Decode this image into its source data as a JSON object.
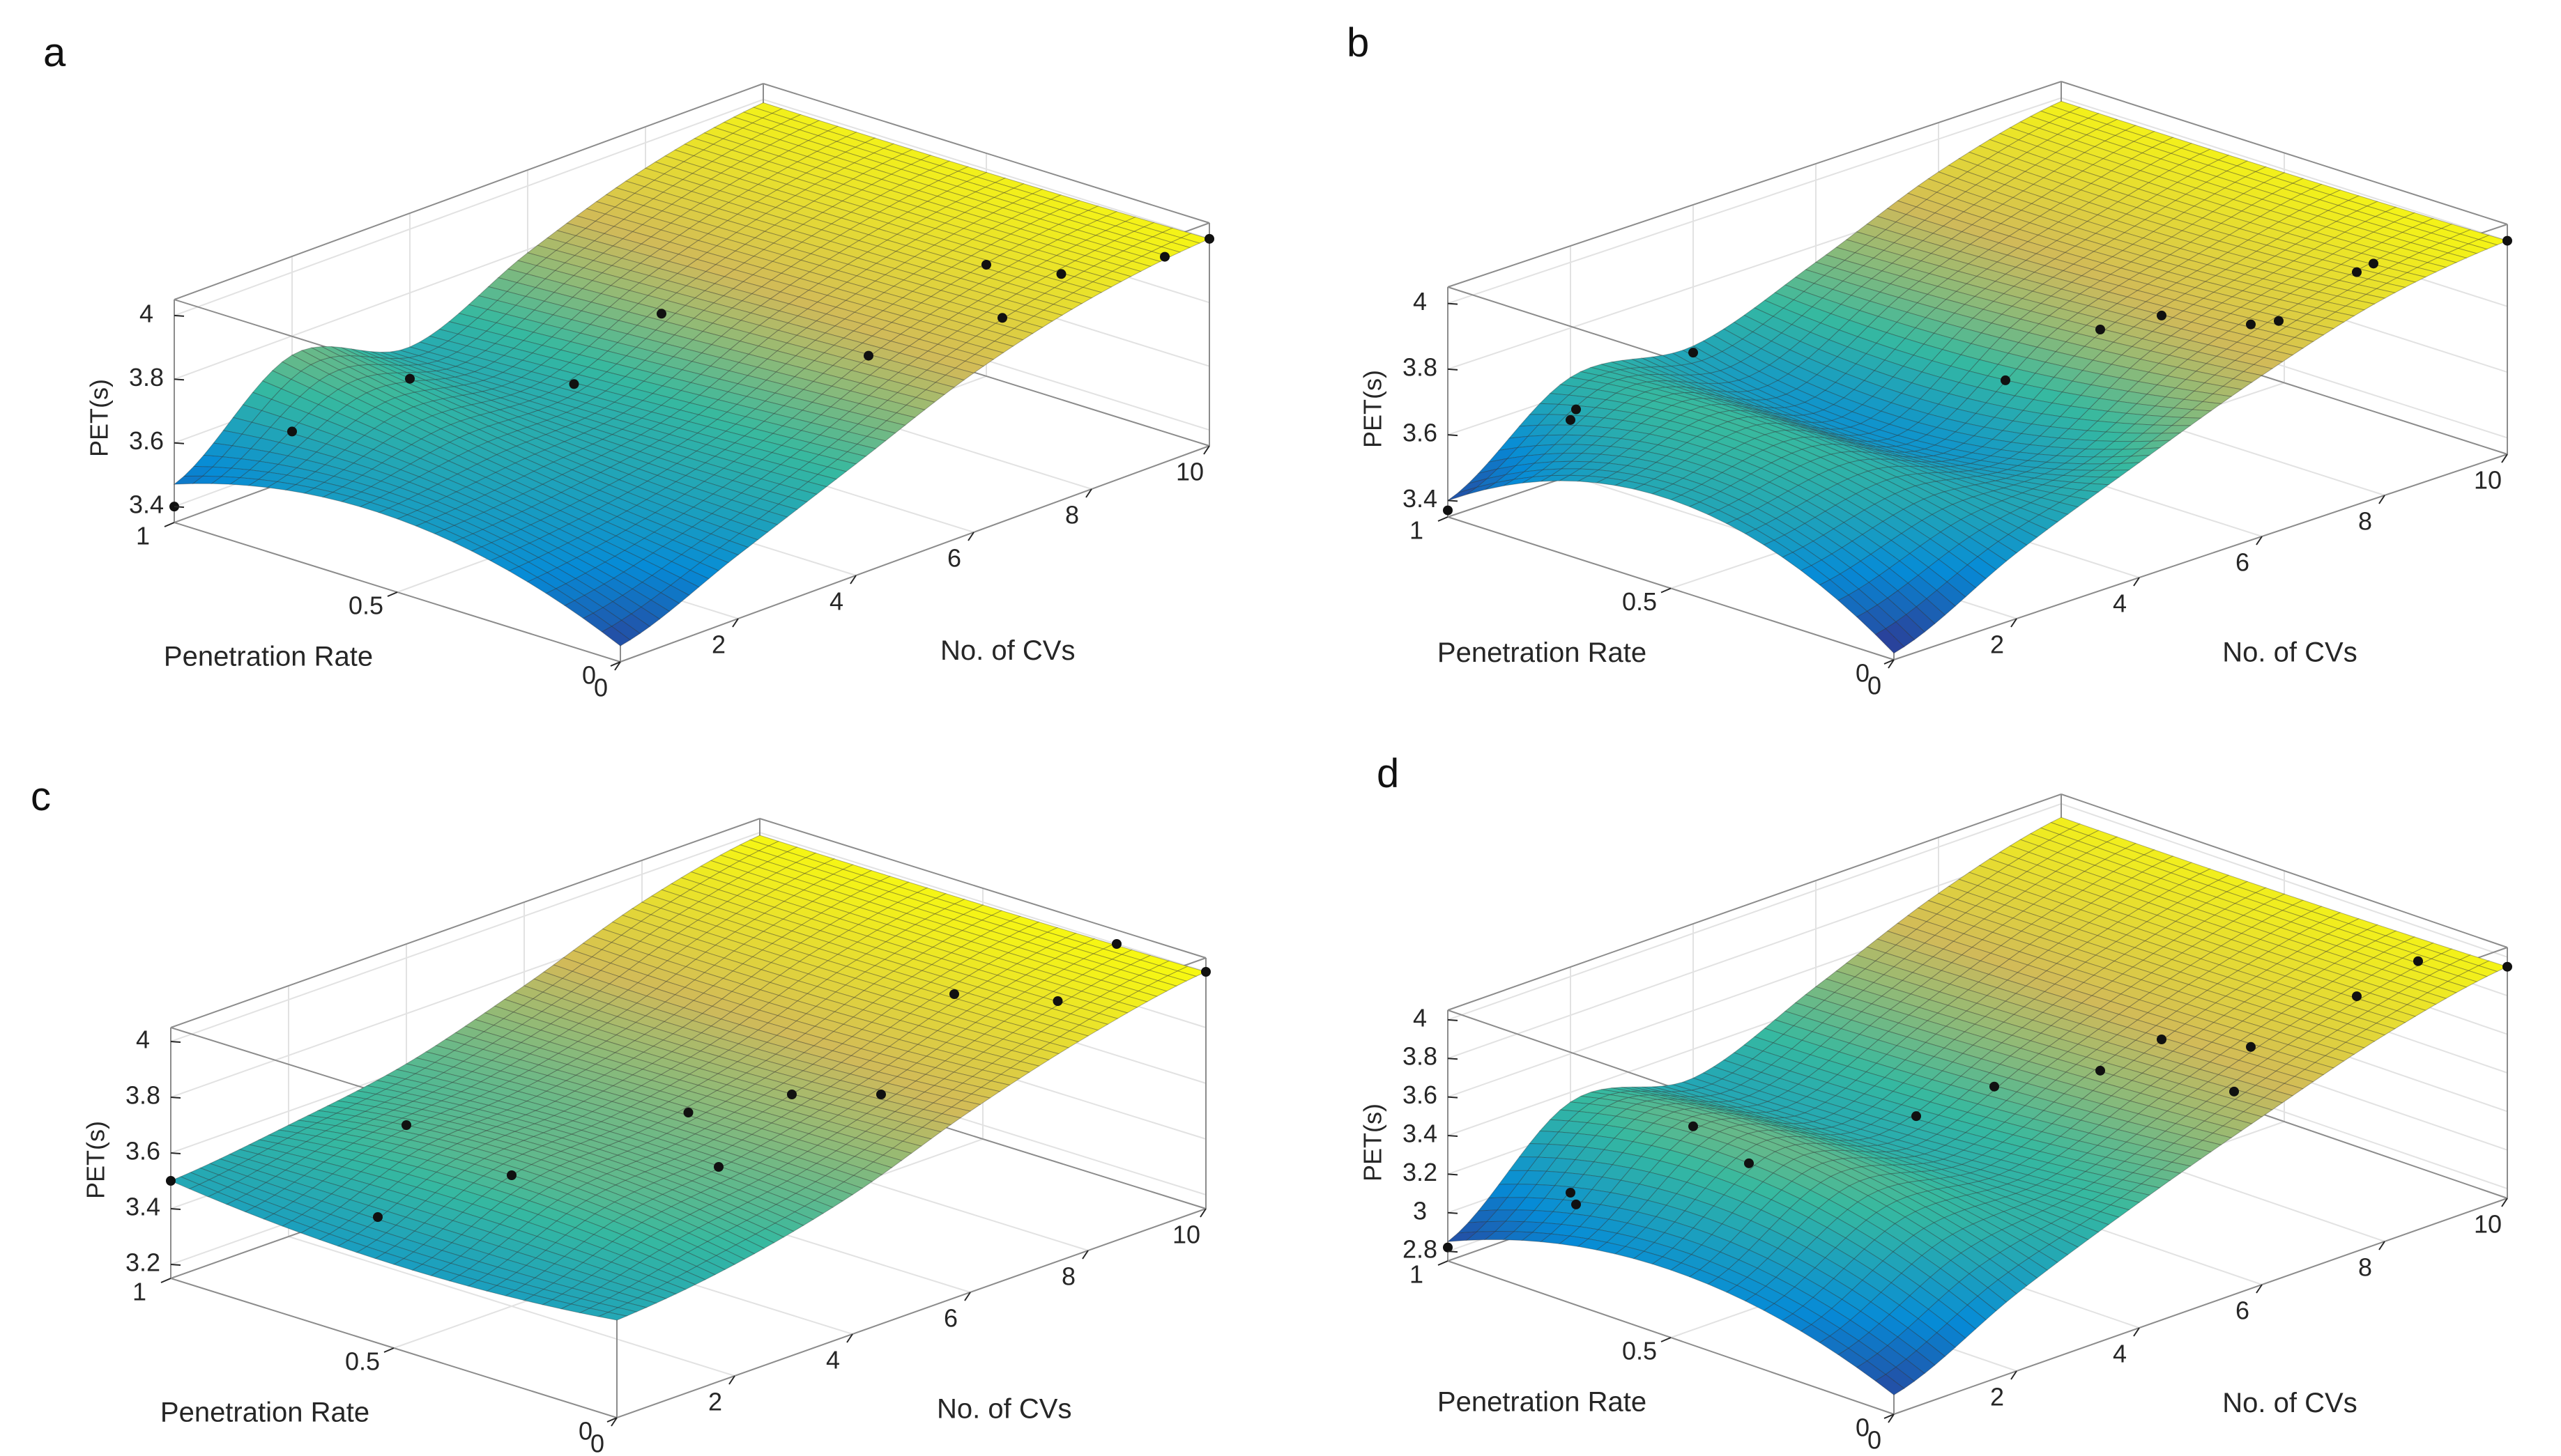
{
  "chart_data": [
    {
      "panel": "a",
      "type": "surface",
      "xlabel": "No. of CVs",
      "ylabel": "Penetration Rate",
      "zlabel": "PET(s)",
      "x_ticks": [
        "0",
        "2",
        "4",
        "6",
        "8",
        "10"
      ],
      "y_ticks": [
        "0",
        "0.5",
        "1"
      ],
      "z_ticks": [
        "3.4",
        "3.6",
        "3.8",
        "4"
      ],
      "xlim": [
        0,
        10
      ],
      "ylim": [
        0,
        1
      ],
      "zlim": [
        3.35,
        4.05
      ],
      "surface_z_at_penetration_rate": [
        [
          3.4,
          3.55,
          3.7,
          3.85,
          3.95,
          4.0
        ],
        [
          3.58,
          3.62,
          3.66,
          3.82,
          3.93,
          3.99
        ],
        [
          3.47,
          3.74,
          3.63,
          3.79,
          3.92,
          3.99
        ]
      ],
      "scatter": [
        {
          "x": 0,
          "y": 1,
          "z": 3.4
        },
        {
          "x": 2,
          "y": 1,
          "z": 3.5
        },
        {
          "x": 4,
          "y": 1,
          "z": 3.53
        },
        {
          "x": 3,
          "y": 0.5,
          "z": 3.8
        },
        {
          "x": 8,
          "y": 0.5,
          "z": 3.55
        },
        {
          "x": 6,
          "y": 0.7,
          "z": 3.73
        },
        {
          "x": 10,
          "y": 0.5,
          "z": 3.7
        },
        {
          "x": 8,
          "y": 0.2,
          "z": 3.8
        },
        {
          "x": 9,
          "y": 0.2,
          "z": 3.87
        },
        {
          "x": 10,
          "y": 0.1,
          "z": 3.9
        },
        {
          "x": 10,
          "y": 0,
          "z": 4.0
        }
      ]
    },
    {
      "panel": "b",
      "type": "surface",
      "xlabel": "No. of CVs",
      "ylabel": "Penetration Rate",
      "zlabel": "PET(s)",
      "x_ticks": [
        "0",
        "2",
        "4",
        "6",
        "8",
        "10"
      ],
      "y_ticks": [
        "0",
        "0.5",
        "1"
      ],
      "z_ticks": [
        "3.4",
        "3.6",
        "3.8",
        "4"
      ],
      "xlim": [
        0,
        10
      ],
      "ylim": [
        0,
        1
      ],
      "zlim": [
        3.35,
        4.05
      ],
      "surface_z_at_penetration_rate": [
        [
          3.37,
          3.55,
          3.7,
          3.84,
          3.95,
          4.0
        ],
        [
          3.62,
          3.68,
          3.55,
          3.78,
          3.9,
          3.99
        ],
        [
          3.4,
          3.65,
          3.62,
          3.75,
          3.9,
          3.99
        ]
      ],
      "scatter": [
        {
          "x": 0,
          "y": 1,
          "z": 3.37
        },
        {
          "x": 1,
          "y": 0.85,
          "z": 3.68
        },
        {
          "x": 2,
          "y": 1,
          "z": 3.52
        },
        {
          "x": 4,
          "y": 1,
          "z": 3.6
        },
        {
          "x": 4,
          "y": 0.3,
          "z": 3.82
        },
        {
          "x": 7,
          "y": 0.5,
          "z": 3.7
        },
        {
          "x": 7,
          "y": 0.1,
          "z": 3.9
        },
        {
          "x": 8,
          "y": 0.3,
          "z": 3.74
        },
        {
          "x": 8,
          "y": 0.5,
          "z": 3.68
        },
        {
          "x": 9,
          "y": 0.2,
          "z": 3.88
        },
        {
          "x": 10,
          "y": 0.3,
          "z": 3.8
        },
        {
          "x": 10,
          "y": 0,
          "z": 4.0
        }
      ]
    },
    {
      "panel": "c",
      "type": "surface",
      "xlabel": "No. of CVs",
      "ylabel": "Penetration Rate",
      "zlabel": "PET(s)",
      "x_ticks": [
        "0",
        "2",
        "4",
        "6",
        "8",
        "10"
      ],
      "y_ticks": [
        "0",
        "0.5",
        "1"
      ],
      "z_ticks": [
        "3.2",
        "3.4",
        "3.6",
        "3.8",
        "4"
      ],
      "xlim": [
        0,
        10
      ],
      "ylim": [
        0,
        1
      ],
      "zlim": [
        3.15,
        4.05
      ],
      "surface_z_at_penetration_rate": [
        [
          3.5,
          3.55,
          3.65,
          3.8,
          3.92,
          4.0
        ],
        [
          3.45,
          3.62,
          3.66,
          3.75,
          3.9,
          3.99
        ],
        [
          3.5,
          3.55,
          3.62,
          3.75,
          3.9,
          3.99
        ]
      ],
      "scatter": [
        {
          "x": 0,
          "y": 1,
          "z": 3.5
        },
        {
          "x": 2,
          "y": 0.8,
          "z": 3.32
        },
        {
          "x": 2,
          "y": 0.5,
          "z": 3.62
        },
        {
          "x": 4,
          "y": 1,
          "z": 3.4
        },
        {
          "x": 4,
          "y": 0.3,
          "z": 3.6
        },
        {
          "x": 5,
          "y": 0.5,
          "z": 3.62
        },
        {
          "x": 6,
          "y": 0.4,
          "z": 3.66
        },
        {
          "x": 6,
          "y": 0.2,
          "z": 3.76
        },
        {
          "x": 8,
          "y": 0.3,
          "z": 3.92
        },
        {
          "x": 9,
          "y": 0.2,
          "z": 3.87
        },
        {
          "x": 10,
          "y": 0.2,
          "z": 4.0
        },
        {
          "x": 10,
          "y": 0,
          "z": 4.0
        }
      ]
    },
    {
      "panel": "d",
      "type": "surface",
      "xlabel": "No. of CVs",
      "ylabel": "Penetration Rate",
      "zlabel": "PET(s)",
      "x_ticks": [
        "0",
        "2",
        "4",
        "6",
        "8",
        "10"
      ],
      "y_ticks": [
        "0",
        "0.5",
        "1"
      ],
      "z_ticks": [
        "2.8",
        "3",
        "3.2",
        "3.4",
        "3.6",
        "3.8",
        "4"
      ],
      "xlim": [
        0,
        10
      ],
      "ylim": [
        0,
        1
      ],
      "zlim": [
        2.75,
        4.05
      ],
      "surface_z_at_penetration_rate": [
        [
          2.85,
          3.15,
          3.4,
          3.62,
          3.82,
          3.95
        ],
        [
          3.1,
          3.45,
          3.3,
          3.55,
          3.78,
          3.93
        ],
        [
          2.85,
          3.35,
          3.25,
          3.5,
          3.76,
          3.93
        ]
      ],
      "scatter": [
        {
          "x": 0,
          "y": 1,
          "z": 2.82
        },
        {
          "x": 1,
          "y": 0.85,
          "z": 3.05
        },
        {
          "x": 2,
          "y": 1,
          "z": 2.88
        },
        {
          "x": 2,
          "y": 0.6,
          "z": 3.35
        },
        {
          "x": 4,
          "y": 1,
          "z": 3.0
        },
        {
          "x": 4,
          "y": 0.5,
          "z": 3.45
        },
        {
          "x": 6,
          "y": 0.6,
          "z": 3.3
        },
        {
          "x": 7,
          "y": 0.5,
          "z": 3.35
        },
        {
          "x": 7,
          "y": 0.2,
          "z": 3.48
        },
        {
          "x": 8,
          "y": 0.3,
          "z": 3.52
        },
        {
          "x": 8,
          "y": 0.5,
          "z": 3.4
        },
        {
          "x": 9,
          "y": 0.2,
          "z": 3.75
        },
        {
          "x": 10,
          "y": 0.2,
          "z": 3.82
        },
        {
          "x": 10,
          "y": 0,
          "z": 3.95
        }
      ]
    }
  ]
}
